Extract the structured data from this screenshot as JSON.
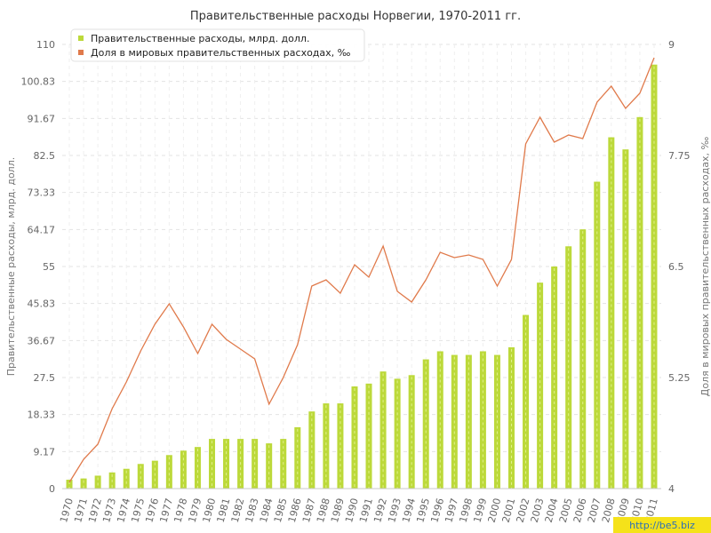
{
  "chart_data": {
    "type": "bar",
    "title": "Правительственные расходы Норвегии, 1970-2011 гг.",
    "ylabel": "Правительственные расходы, млрд. долл.",
    "y2label": "Доля в мировых правительственных расходах, ‰",
    "categories": [
      "1970",
      "1971",
      "1972",
      "1973",
      "1974",
      "1975",
      "1976",
      "1977",
      "1978",
      "1979",
      "1980",
      "1981",
      "1982",
      "1983",
      "1984",
      "1985",
      "1986",
      "1987",
      "1988",
      "1989",
      "1990",
      "1991",
      "1992",
      "1993",
      "1994",
      "1995",
      "1996",
      "1997",
      "1998",
      "1999",
      "2000",
      "2001",
      "2002",
      "2003",
      "2004",
      "2005",
      "2006",
      "2007",
      "2008",
      "2009",
      "2010",
      "2011"
    ],
    "ylim": [
      0,
      110
    ],
    "y_ticks": [
      "0",
      "9.17",
      "18.33",
      "27.5",
      "36.67",
      "45.83",
      "55",
      "64.17",
      "73.33",
      "82.5",
      "91.67",
      "100.83",
      "110"
    ],
    "y2lim": [
      4,
      9
    ],
    "y2_ticks": [
      "4",
      "5.25",
      "6.5",
      "7.75",
      "9"
    ],
    "grid": true,
    "legend_position": "top-left",
    "colors": {
      "bars": "#bcd93a",
      "bars_stripe": "#e2f08c",
      "line": "#e07a4b",
      "grid": "#e3e3e3"
    },
    "series": [
      {
        "name": "Правительственные расходы, млрд. долл.",
        "type": "bar",
        "axis": "left",
        "color": "#bcd93a",
        "values": [
          2.2,
          2.5,
          3.2,
          4.0,
          4.9,
          6.1,
          6.9,
          8.3,
          9.4,
          10.3,
          12.3,
          12.3,
          12.3,
          12.3,
          11.2,
          12.3,
          15.2,
          19.1,
          21.1,
          21.1,
          25.3,
          26.0,
          29.0,
          27.2,
          28.1,
          32.0,
          34.0,
          33.1,
          33.1,
          34.0,
          33.1,
          35.0,
          43.0,
          51.0,
          55.0,
          60.0,
          64.2,
          76.0,
          87.0,
          84.0,
          92.0,
          105.0
        ]
      },
      {
        "name": "Доля в мировых правительственных расходах, ‰",
        "type": "line",
        "axis": "right",
        "color": "#e07a4b",
        "values": [
          4.07,
          4.33,
          4.5,
          4.9,
          5.2,
          5.55,
          5.85,
          6.08,
          5.82,
          5.52,
          5.85,
          5.68,
          5.57,
          5.46,
          4.95,
          5.25,
          5.62,
          6.28,
          6.35,
          6.2,
          6.52,
          6.38,
          6.73,
          6.22,
          6.1,
          6.35,
          6.66,
          6.6,
          6.63,
          6.58,
          6.28,
          6.58,
          7.88,
          8.18,
          7.9,
          7.98,
          7.94,
          8.35,
          8.53,
          8.28,
          8.45,
          8.85
        ]
      }
    ]
  },
  "watermark": "http://be5.biz"
}
